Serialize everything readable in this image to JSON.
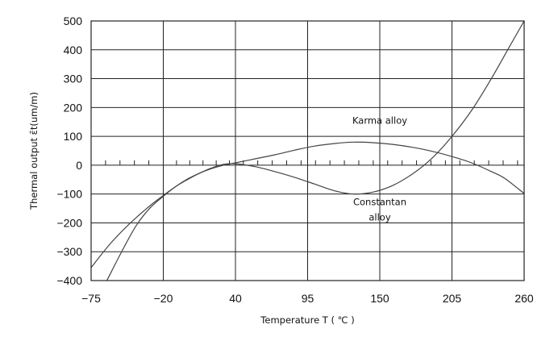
{
  "chart_data": {
    "type": "line",
    "xlabel": "Temperature T ( ℃ )",
    "ylabel": "Thermal output ε̄t(um/m)",
    "x_ticks": [
      -75,
      -20,
      40,
      95,
      150,
      205,
      260
    ],
    "y_ticks": [
      500,
      400,
      300,
      200,
      100,
      0,
      -100,
      -200,
      -300,
      -400
    ],
    "xlim": [
      -75,
      260
    ],
    "ylim": [
      -400,
      500
    ],
    "grid": true,
    "zero_line_minor_tick_step": 11,
    "annotations": [
      {
        "text": "Karma alloy",
        "x": 150,
        "y": 155
      },
      {
        "text": "Constantan",
        "x": 150,
        "y": -128
      },
      {
        "text": "alloy",
        "x": 150,
        "y": -180
      }
    ],
    "series": [
      {
        "x": [
          -75,
          -60,
          -45,
          -30,
          -20,
          -10,
          0,
          10,
          20,
          30,
          40,
          55,
          70,
          85,
          100,
          115,
          130,
          145,
          160,
          175,
          190,
          205,
          220,
          235,
          245,
          260
        ],
        "y": [
          -355,
          -270,
          -200,
          -140,
          -105,
          -75,
          -50,
          -28,
          -12,
          0,
          8,
          22,
          36,
          52,
          66,
          75,
          80,
          78,
          72,
          62,
          48,
          30,
          8,
          -22,
          -45,
          -98
        ]
      },
      {
        "x": [
          -63,
          -50,
          -40,
          -30,
          -20,
          -10,
          0,
          10,
          20,
          30,
          40,
          55,
          70,
          85,
          100,
          115,
          130,
          145,
          160,
          175,
          190,
          205,
          220,
          235,
          250,
          260
        ],
        "y": [
          -400,
          -285,
          -205,
          -148,
          -108,
          -75,
          -48,
          -28,
          -10,
          3,
          5,
          -5,
          -22,
          -42,
          -65,
          -88,
          -100,
          -93,
          -70,
          -30,
          25,
          100,
          190,
          300,
          420,
          500
        ]
      }
    ]
  }
}
